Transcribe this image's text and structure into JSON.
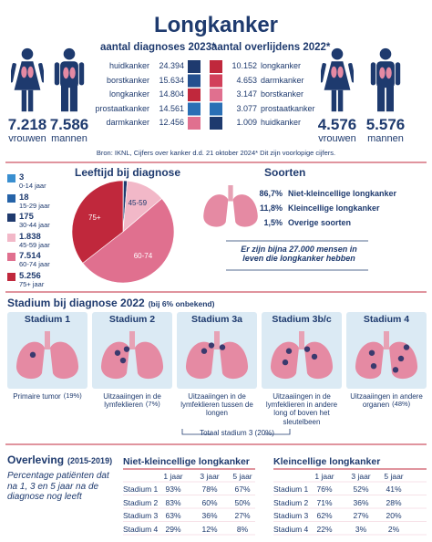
{
  "header": {
    "title": "Longkanker"
  },
  "figures_left": [
    {
      "value": "7.218",
      "label": "vrouwen"
    },
    {
      "value": "7.586",
      "label": "mannen"
    }
  ],
  "figures_right": [
    {
      "value": "4.576",
      "label": "vrouwen"
    },
    {
      "value": "5.576",
      "label": "mannen"
    }
  ],
  "diagnoses": {
    "title": "aantal diagnoses 2023*",
    "rows": [
      {
        "name": "huidkanker",
        "value": "24.394",
        "color": "#1e3a6e"
      },
      {
        "name": "borstkanker",
        "value": "15.634",
        "color": "#24508f"
      },
      {
        "name": "longkanker",
        "value": "14.804",
        "color": "#c0283c"
      },
      {
        "name": "prostaatkanker",
        "value": "14.561",
        "color": "#2a6fb5"
      },
      {
        "name": "darmkanker",
        "value": "12.456",
        "color": "#e0708f"
      }
    ]
  },
  "deaths": {
    "title": "aantal overlijdens 2022*",
    "rows": [
      {
        "name": "longkanker",
        "value": "10.152",
        "color": "#c0283c"
      },
      {
        "name": "darmkanker",
        "value": "4.653",
        "color": "#d2405a"
      },
      {
        "name": "borstkanker",
        "value": "3.147",
        "color": "#e0708f"
      },
      {
        "name": "prostaatkanker",
        "value": "3.077",
        "color": "#2a6fb5"
      },
      {
        "name": "huidkanker",
        "value": "1.009",
        "color": "#1e3a6e"
      }
    ]
  },
  "source": "Bron: IKNL, Cijfers over kanker d.d. 21 oktober 2024* Dit zijn voorlopige cijfers.",
  "chart_data": {
    "type": "pie",
    "title": "Leeftijd bij diagnose",
    "categories": [
      "0-14 jaar",
      "15-29 jaar",
      "30-44 jaar",
      "45-59 jaar",
      "60-74 jaar",
      "75+ jaar"
    ],
    "values": [
      3,
      18,
      175,
      1838,
      7514,
      5256
    ],
    "value_labels": [
      "3",
      "18",
      "175",
      "1.838",
      "7.514",
      "5.256"
    ],
    "slice_labels": [
      null,
      null,
      null,
      "45-59",
      "60-74",
      "75+"
    ],
    "colors": [
      "#3a8fd0",
      "#2563a8",
      "#1f3a6e",
      "#f2b8c8",
      "#e0708f",
      "#c0283c"
    ]
  },
  "types": {
    "title": "Soorten",
    "rows": [
      {
        "share": "86,7%",
        "name": "Niet-kleincellige longkanker"
      },
      {
        "share": "11,8%",
        "name": "Kleincellige longkanker"
      },
      {
        "share": "1,5%",
        "name": "Overige soorten"
      }
    ],
    "note": "Er zijn bijna 27.000 mensen in leven die longkanker hebben"
  },
  "stages": {
    "title": "Stadium bij diagnose 2022",
    "subtitle": "(bij 6% onbekend)",
    "items": [
      {
        "name": "Stadium 1",
        "caption": "Primaire tumor",
        "share": "(19%)"
      },
      {
        "name": "Stadium 2",
        "caption": "Uitzaaiingen in de lymfeklieren",
        "share": "(7%)"
      },
      {
        "name": "Stadium 3a",
        "caption": "Uitzaaiingen in de lymfeklieren tussen de longen"
      },
      {
        "name": "Stadium 3b/c",
        "caption": "Uitzaaiingen in de lymfeklieren in andere long of boven het sleutelbeen"
      },
      {
        "name": "Stadium 4",
        "caption": "Uitzaaiingen in andere organen",
        "share": "(48%)"
      }
    ],
    "total": "Totaal stadium 3 (20%)"
  },
  "survival": {
    "title": "Overleving",
    "period": "(2015-2019)",
    "description": "Percentage patiënten dat na 1, 3 en 5 jaar na de diagnose nog leeft",
    "tables": [
      {
        "title": "Niet-kleincellige longkanker",
        "columns": [
          "1 jaar",
          "3 jaar",
          "5 jaar"
        ],
        "rows": [
          [
            "Stadium 1",
            "93%",
            "78%",
            "67%"
          ],
          [
            "Stadium 2",
            "83%",
            "60%",
            "50%"
          ],
          [
            "Stadium 3",
            "63%",
            "36%",
            "27%"
          ],
          [
            "Stadium 4",
            "29%",
            "12%",
            "8%"
          ]
        ]
      },
      {
        "title": "Kleincellige longkanker",
        "columns": [
          "1 jaar",
          "3 jaar",
          "5 jaar"
        ],
        "rows": [
          [
            "Stadium 1",
            "76%",
            "52%",
            "41%"
          ],
          [
            "Stadium 2",
            "71%",
            "36%",
            "28%"
          ],
          [
            "Stadium 3",
            "62%",
            "27%",
            "20%"
          ],
          [
            "Stadium 4",
            "22%",
            "3%",
            "2%"
          ]
        ]
      }
    ]
  }
}
